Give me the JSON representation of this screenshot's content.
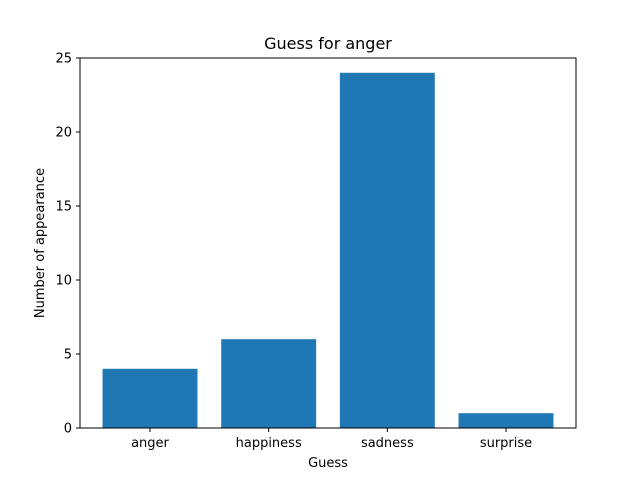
{
  "chart_data": {
    "type": "bar",
    "title": "Guess for anger",
    "xlabel": "Guess",
    "ylabel": "Number of appearance",
    "categories": [
      "anger",
      "happiness",
      "sadness",
      "surprise"
    ],
    "values": [
      4,
      6,
      24,
      1
    ],
    "ylim": [
      0,
      25
    ],
    "yticks": [
      0,
      5,
      10,
      15,
      20,
      25
    ],
    "grid": false,
    "legend": "none",
    "bar_color": "#1f77b4"
  }
}
